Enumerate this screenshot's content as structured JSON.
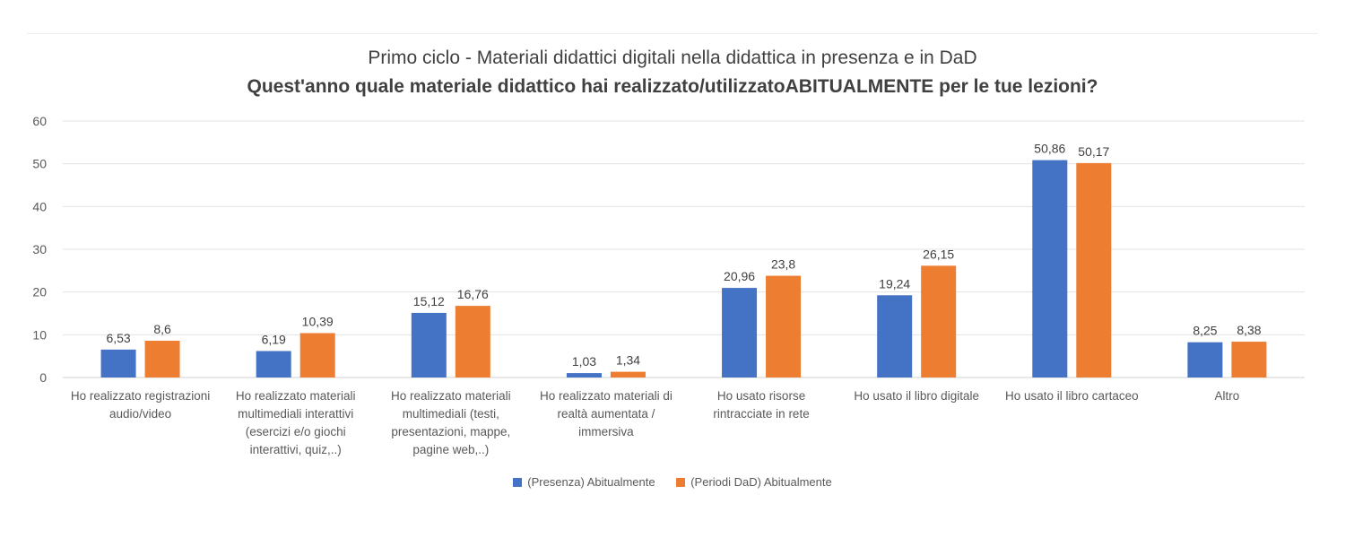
{
  "chart_data": {
    "type": "bar",
    "title": "Primo ciclo - Materiali didattici digitali nella didattica in presenza e in DaD",
    "subtitle": "Quest'anno quale materiale didattico hai realizzato/utilizzatoABITUALMENTE  per le tue lezioni?",
    "categories": [
      [
        "Ho realizzato registrazioni",
        "audio/video"
      ],
      [
        "Ho realizzato materiali",
        "multimediali interattivi",
        "(esercizi e/o giochi",
        "interattivi, quiz,..)"
      ],
      [
        "Ho realizzato materiali",
        "multimediali (testi,",
        "presentazioni, mappe,",
        "pagine web,..)"
      ],
      [
        "Ho realizzato materiali di",
        "realtà aumentata /",
        "immersiva"
      ],
      [
        "Ho usato risorse",
        "rintracciate in rete"
      ],
      [
        "Ho usato il libro digitale"
      ],
      [
        "Ho usato il libro cartaceo"
      ],
      [
        "Altro"
      ]
    ],
    "series": [
      {
        "name": "(Presenza) Abitualmente",
        "color": "#4472C4",
        "values": [
          6.53,
          6.19,
          15.12,
          1.03,
          20.96,
          19.24,
          50.86,
          8.25
        ],
        "labels": [
          "6,53",
          "6,19",
          "15,12",
          "1,03",
          "20,96",
          "19,24",
          "50,86",
          "8,25"
        ]
      },
      {
        "name": "(Periodi DaD) Abitualmente",
        "color": "#ED7D31",
        "values": [
          8.6,
          10.39,
          16.76,
          1.34,
          23.8,
          26.15,
          50.17,
          8.38
        ],
        "labels": [
          "8,6",
          "10,39",
          "16,76",
          "1,34",
          "23,8",
          "26,15",
          "50,17",
          "8,38"
        ]
      }
    ],
    "yticks": [
      "0",
      "10",
      "20",
      "30",
      "40",
      "50",
      "60"
    ],
    "ylim": [
      0,
      60
    ],
    "grid": true,
    "legend_position": "bottom"
  }
}
